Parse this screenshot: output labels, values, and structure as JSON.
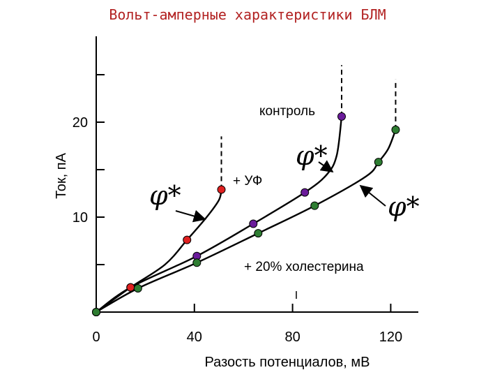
{
  "chart_data": {
    "type": "line",
    "title": "Вольт-амперные характеристики БЛМ",
    "xlabel": "Разость потенциалов, мВ",
    "ylabel": "Ток, пА",
    "xlim": [
      0,
      130
    ],
    "ylim": [
      0,
      28
    ],
    "x_ticks": [
      0,
      40,
      80,
      120
    ],
    "x_tick_labels": [
      "0",
      "40",
      "80",
      "120"
    ],
    "y_ticks": [
      5,
      10,
      15,
      20,
      25
    ],
    "y_tick_labels": [
      "",
      "10",
      "",
      "20",
      ""
    ],
    "series": [
      {
        "name": "контроль",
        "marker_color": "#6a1b9a",
        "points": [
          [
            0,
            0
          ],
          [
            14,
            2.6
          ],
          [
            41,
            5.9
          ],
          [
            64,
            9.3
          ],
          [
            85,
            12.6
          ],
          [
            100,
            20.6
          ]
        ],
        "curve": [
          [
            0,
            0
          ],
          [
            14,
            2.6
          ],
          [
            41,
            5.9
          ],
          [
            64,
            9.3
          ],
          [
            85,
            12.6
          ],
          [
            94,
            14.5
          ],
          [
            98,
            16.5
          ],
          [
            100,
            20.6
          ],
          [
            100,
            26
          ]
        ]
      },
      {
        "name": "+ УФ",
        "marker_color": "#e02020",
        "points": [
          [
            0,
            0
          ],
          [
            14,
            2.6
          ],
          [
            37,
            7.6
          ],
          [
            51,
            12.9
          ]
        ],
        "curve": [
          [
            0,
            0
          ],
          [
            14,
            2.6
          ],
          [
            28,
            5.0
          ],
          [
            37,
            7.6
          ],
          [
            45,
            10.0
          ],
          [
            50,
            11.8
          ],
          [
            51,
            12.9
          ],
          [
            51,
            18.5
          ]
        ]
      },
      {
        "name": "+ 20% холестерина",
        "marker_color": "#2e7d32",
        "points": [
          [
            0,
            0
          ],
          [
            17,
            2.5
          ],
          [
            41,
            5.2
          ],
          [
            66,
            8.3
          ],
          [
            89,
            11.2
          ],
          [
            115,
            15.8
          ],
          [
            122,
            19.2
          ]
        ],
        "curve": [
          [
            0,
            0
          ],
          [
            17,
            2.5
          ],
          [
            41,
            5.2
          ],
          [
            66,
            8.3
          ],
          [
            89,
            11.2
          ],
          [
            110,
            14.3
          ],
          [
            115,
            15.8
          ],
          [
            119,
            17.2
          ],
          [
            122,
            19.2
          ],
          [
            122,
            24.5
          ]
        ]
      }
    ],
    "annotations": {
      "control": "контроль",
      "uv": "+ УФ",
      "chol": "+ 20% холестерина",
      "phi": "φ*"
    }
  }
}
